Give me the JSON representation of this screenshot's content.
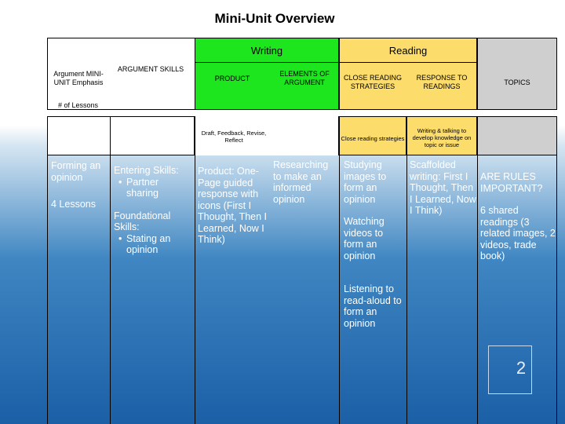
{
  "title": "Mini-Unit Overview",
  "header": {
    "writing": "Writing",
    "reading": "Reading"
  },
  "col_headers": {
    "argument_emphasis": "Argument MINI-UNIT Emphasis",
    "argument_skills": "ARGUMENT SKILLS",
    "product": "PRODUCT",
    "elements": "ELEMENTS OF ARGUMENT",
    "close_reading": "CLOSE READING STRATEGIES",
    "response": "RESPONSE TO READINGS",
    "topics": "TOPICS"
  },
  "lessons_label": "# of Lessons",
  "sub_headers": {
    "product": "Draft, Feedback, Revise, Reflect",
    "close_reading": "Close reading strategies",
    "response": "Writing & talking to develop knowledge on topic or issue"
  },
  "row": {
    "emphasis": "Forming an opinion",
    "lessons": "4 Lessons",
    "skills_entering": "Entering Skills:",
    "skills_entering_items": [
      "Partner sharing"
    ],
    "skills_foundational": "Foundational Skills:",
    "skills_foundational_items": [
      "Stating an opinion"
    ],
    "product": "Product: One-Page guided response with icons (First I Thought, Then I Learned, Now I Think)",
    "elements": "Researching to make an informed opinion",
    "strategies": [
      "Studying images to form an opinion",
      "Watching videos to form an opinion",
      "Listening to read-aloud to form an opinion"
    ],
    "response": "Scaffolded writing: First I Thought, Then I Learned, Now I Think)",
    "topics_title": "ARE RULES IMPORTANT?",
    "topics_detail": "6 shared readings (3 related images, 2 videos, trade book)"
  },
  "page_number": "2",
  "colors": {
    "writing": "#1ee61e",
    "reading": "#fcdc6b",
    "grey": "#cfcfcf"
  }
}
